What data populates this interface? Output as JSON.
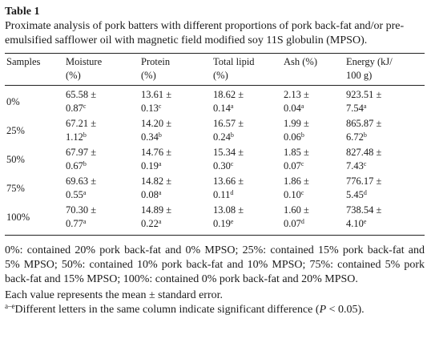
{
  "table": {
    "label": "Table 1",
    "caption": "Proximate analysis of pork batters with different proportions of pork back-fat and/or pre-emulsified safflower oil with magnetic field modified soy 11S globulin (MPSO).",
    "headers": [
      {
        "line1": "Samples",
        "line2": ""
      },
      {
        "line1": "Moisture",
        "line2": "(%)"
      },
      {
        "line1": "Protein",
        "line2": "(%)"
      },
      {
        "line1": "Total lipid",
        "line2": "(%)"
      },
      {
        "line1": "Ash (%)",
        "line2": ""
      },
      {
        "line1": "Energy (kJ/",
        "line2": "100 g)"
      }
    ],
    "rows": [
      {
        "sample": "0%",
        "cells": [
          {
            "mean": "65.58 ±",
            "se": "0.87",
            "sig": "c"
          },
          {
            "mean": "13.61 ±",
            "se": "0.13",
            "sig": "c"
          },
          {
            "mean": "18.62 ±",
            "se": "0.14",
            "sig": "a"
          },
          {
            "mean": "2.13 ±",
            "se": "0.04",
            "sig": "a"
          },
          {
            "mean": "923.51 ±",
            "se": "7.54",
            "sig": "a"
          }
        ]
      },
      {
        "sample": "25%",
        "cells": [
          {
            "mean": "67.21 ±",
            "se": "1.12",
            "sig": "b"
          },
          {
            "mean": "14.20 ±",
            "se": "0.34",
            "sig": "b"
          },
          {
            "mean": "16.57 ±",
            "se": "0.24",
            "sig": "b"
          },
          {
            "mean": "1.99 ±",
            "se": "0.06",
            "sig": "b"
          },
          {
            "mean": "865.87 ±",
            "se": "6.72",
            "sig": "b"
          }
        ]
      },
      {
        "sample": "50%",
        "cells": [
          {
            "mean": "67.97 ±",
            "se": "0.67",
            "sig": "b"
          },
          {
            "mean": "14.76 ±",
            "se": "0.19",
            "sig": "a"
          },
          {
            "mean": "15.34 ±",
            "se": "0.30",
            "sig": "c"
          },
          {
            "mean": "1.85 ±",
            "se": "0.07",
            "sig": "c"
          },
          {
            "mean": "827.48 ±",
            "se": "7.43",
            "sig": "c"
          }
        ]
      },
      {
        "sample": "75%",
        "cells": [
          {
            "mean": "69.63 ±",
            "se": "0.55",
            "sig": "a"
          },
          {
            "mean": "14.82 ±",
            "se": "0.08",
            "sig": "a"
          },
          {
            "mean": "13.66 ±",
            "se": "0.11",
            "sig": "d"
          },
          {
            "mean": "1.86 ±",
            "se": "0.10",
            "sig": "c"
          },
          {
            "mean": "776.17 ±",
            "se": "5.45",
            "sig": "d"
          }
        ]
      },
      {
        "sample": "100%",
        "cells": [
          {
            "mean": "70.30 ±",
            "se": "0.77",
            "sig": "a"
          },
          {
            "mean": "14.89 ±",
            "se": "0.22",
            "sig": "a"
          },
          {
            "mean": "13.08 ±",
            "se": "0.19",
            "sig": "e"
          },
          {
            "mean": "1.60 ±",
            "se": "0.07",
            "sig": "d"
          },
          {
            "mean": "738.54 ±",
            "se": "4.10",
            "sig": "e"
          }
        ]
      }
    ]
  },
  "footnotes": {
    "composition": "0%: contained 20% pork back-fat and 0% MPSO; 25%: contained 15% pork back-fat and 5% MPSO; 50%: contained 10% pork back-fat and 10% MPSO; 75%: contained 5% pork back-fat and 15% MPSO; 100%: contained 0% pork back-fat and 20% MPSO.",
    "mean_se": "Each value represents the mean ± standard error.",
    "letters_sup": "a–e",
    "letters_text": "Different letters in the same column indicate significant difference (",
    "letters_p": "P",
    "letters_end": " < 0.05)."
  }
}
